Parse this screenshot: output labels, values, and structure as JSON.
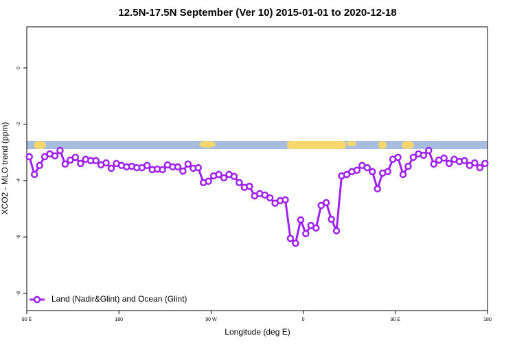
{
  "chart_data": {
    "type": "line",
    "title": "12.5N-17.5N September (Ver 10)   2015-01-01 to 2020-12-18",
    "xlabel": "Longitude (deg E)",
    "ylabel": "XCO2 - MLO trend (ppm)",
    "xlim": [
      90,
      540
    ],
    "ylim": [
      -8.61,
      1.46
    ],
    "xticks": [
      {
        "value": 90,
        "label": "90 E"
      },
      180,
      {
        "value": 270,
        "label": "90 W"
      },
      {
        "value": 360,
        "label": "0"
      },
      {
        "value": 450,
        "label": "90 E"
      },
      {
        "value": 540,
        "label": "180"
      }
    ],
    "yticks": [
      0,
      -2,
      -4,
      -6,
      -8
    ],
    "legend": "bottom-left",
    "x": [
      92.5,
      97.5,
      102.5,
      107.5,
      112.5,
      117.5,
      122.5,
      127.5,
      132.5,
      137.5,
      142.5,
      147.5,
      152.5,
      157.5,
      162.5,
      167.5,
      172.5,
      177.5,
      182.5,
      187.5,
      192.5,
      197.5,
      202.5,
      207.5,
      212.5,
      217.5,
      222.5,
      227.5,
      232.5,
      237.5,
      242.5,
      247.5,
      252.5,
      257.5,
      262.5,
      267.5,
      272.5,
      277.5,
      282.5,
      287.5,
      292.5,
      297.5,
      302.5,
      307.5,
      312.5,
      317.5,
      322.5,
      327.5,
      332.5,
      337.5,
      342.5,
      347.5,
      352.5,
      357.5,
      362.5,
      367.5,
      372.5,
      377.5,
      382.5,
      387.5,
      392.5,
      397.5,
      402.5,
      407.5,
      412.5,
      417.5,
      422.5,
      427.5,
      432.5,
      437.5,
      442.5,
      447.5,
      452.5,
      457.5,
      462.5,
      467.5,
      472.5,
      477.5,
      482.5,
      487.5,
      492.5,
      497.5,
      502.5,
      507.5,
      512.5,
      517.5,
      522.5,
      527.5,
      532.5,
      537.5
    ],
    "series": [
      {
        "name": "Land (Nadir&Glint) and Ocean (Glint)",
        "color": "#a020f0",
        "values": [
          -3.15,
          -3.78,
          -3.46,
          -3.15,
          -3.05,
          -3.12,
          -2.93,
          -3.41,
          -3.27,
          -3.17,
          -3.39,
          -3.24,
          -3.29,
          -3.29,
          -3.44,
          -3.37,
          -3.56,
          -3.39,
          -3.46,
          -3.51,
          -3.49,
          -3.54,
          -3.54,
          -3.46,
          -3.61,
          -3.59,
          -3.61,
          -3.44,
          -3.51,
          -3.51,
          -3.66,
          -3.41,
          -3.56,
          -3.54,
          -4.07,
          -4.02,
          -3.83,
          -3.78,
          -3.9,
          -3.78,
          -3.85,
          -4.07,
          -4.24,
          -4.2,
          -4.54,
          -4.46,
          -4.51,
          -4.61,
          -4.8,
          -4.71,
          -4.68,
          -6.05,
          -6.22,
          -5.39,
          -5.88,
          -5.59,
          -5.68,
          -4.88,
          -4.78,
          -5.37,
          -5.78,
          -3.83,
          -3.78,
          -3.68,
          -3.63,
          -3.46,
          -3.54,
          -3.68,
          -4.29,
          -3.73,
          -3.68,
          -3.24,
          -3.17,
          -3.78,
          -3.49,
          -3.17,
          -3.05,
          -3.1,
          -2.93,
          -3.41,
          -3.27,
          -3.2,
          -3.39,
          -3.24,
          -3.32,
          -3.29,
          -3.46,
          -3.37,
          -3.54,
          -3.39
        ]
      }
    ]
  }
}
